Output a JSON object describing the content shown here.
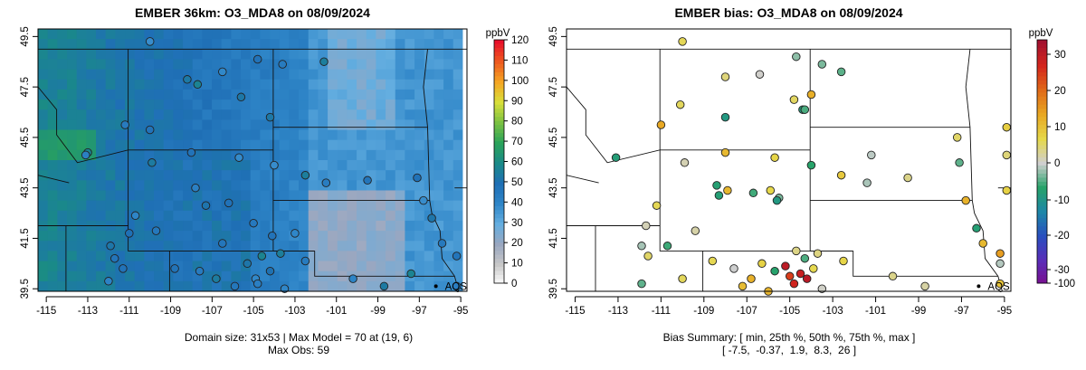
{
  "left_panel": {
    "title": "EMBER 36km: O3_MDA8 on 08/09/2024",
    "colorbar_units": "ppbV",
    "colorbar_ticks": [
      "0",
      "10",
      "20",
      "30",
      "40",
      "50",
      "60",
      "70",
      "80",
      "90",
      "100",
      "110",
      "120"
    ],
    "x_ticks": [
      "-115",
      "-113",
      "-111",
      "-109",
      "-107",
      "-105",
      "-103",
      "-101",
      "-99",
      "-97",
      "-95"
    ],
    "y_ticks": [
      "39.5",
      "41.5",
      "43.5",
      "45.5",
      "47.5",
      "49.5"
    ],
    "caption_line1": "Domain size: 31x53 | Max Model = 70 at (19, 6)",
    "caption_line2": "Max Obs: 59",
    "site_label": "AQS"
  },
  "right_panel": {
    "title": "EMBER bias: O3_MDA8 on 08/09/2024",
    "colorbar_units": "ppbV",
    "colorbar_ticks": [
      "30",
      "20",
      "10",
      "0",
      "-10",
      "-20",
      "-30",
      "-100"
    ],
    "x_ticks": [
      "-115",
      "-113",
      "-111",
      "-109",
      "-107",
      "-105",
      "-103",
      "-101",
      "-99",
      "-97",
      "-95"
    ],
    "y_ticks": [
      "39.5",
      "41.5",
      "43.5",
      "45.5",
      "47.5",
      "49.5"
    ],
    "caption_line1": "Bias Summary: [ min, 25th %, 50th %, 75th %, max ]",
    "caption_line2": "[ -7.5,  -0.37,  1.9,  8.3,  26 ]",
    "site_label": "AQS"
  },
  "colors": {
    "left_scale": [
      "#ffffff",
      "#c8c8c8",
      "#9aa7c0",
      "#64aee0",
      "#2f86c8",
      "#1f6fb5",
      "#1a8a88",
      "#2aa35a",
      "#7ac142",
      "#d8df3a",
      "#f5a623",
      "#ee5a1f",
      "#e8102a"
    ],
    "bias_scale": [
      "#7b0f8e",
      "#5a2db8",
      "#2a4fbf",
      "#1d86a8",
      "#27a36a",
      "#cfcfcf",
      "#e6d84a",
      "#e8a823",
      "#e06a18",
      "#d4261d",
      "#a3122f"
    ]
  }
}
